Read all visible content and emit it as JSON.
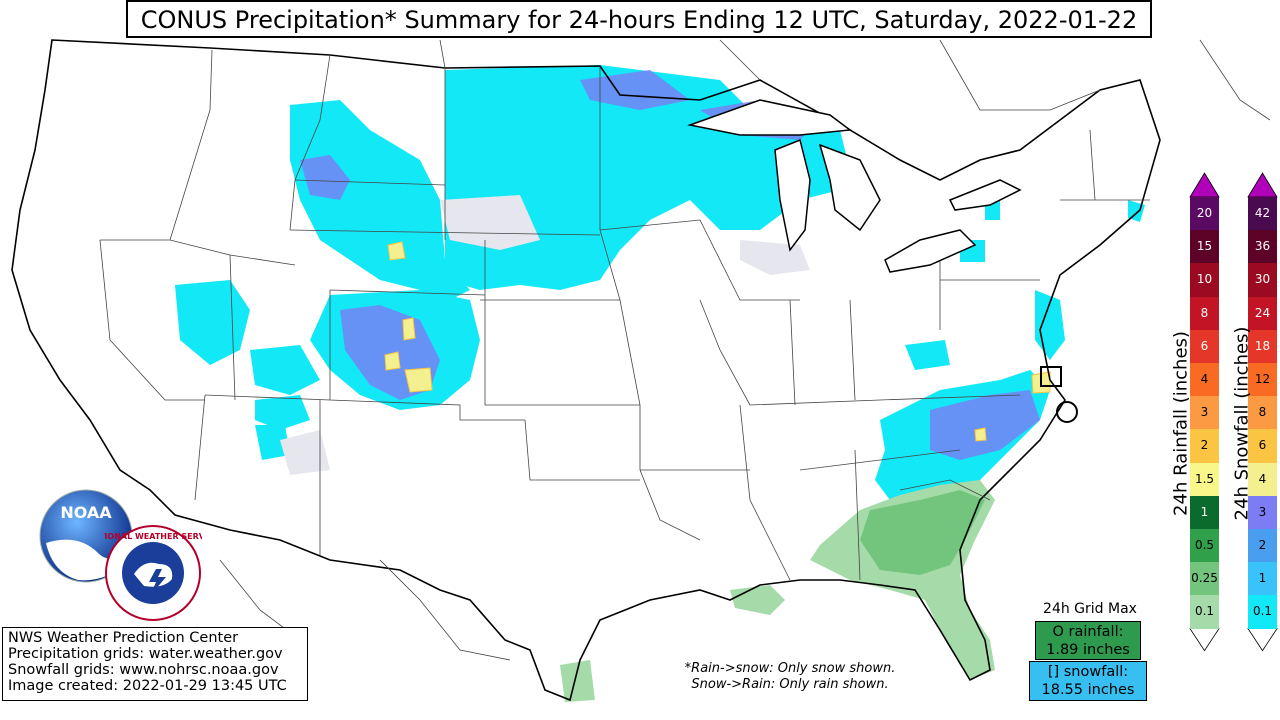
{
  "title": "CONUS Precipitation* Summary for 24-hours Ending 12 UTC, Saturday, 2022-01-22",
  "credits": [
    "NWS Weather Prediction Center",
    "Precipitation grids: water.weather.gov",
    "Snowfall grids: www.nohrsc.noaa.gov",
    "Image created: 2022-01-29 13:45 UTC"
  ],
  "footnote": [
    "*Rain->snow: Only snow shown.",
    "Snow->Rain: Only rain shown."
  ],
  "grid_max": {
    "title": "24h Grid Max",
    "rain_line1": "O rainfall:",
    "rain_line2": "1.89 inches",
    "snow_line1": "[] snowfall:",
    "snow_line2": "18.55 inches"
  },
  "logos": {
    "noaa": "NOAA",
    "nws": "NATIONAL WEATHER SERVICE"
  },
  "rain_scale": {
    "label": "24h Rainfall (inches)",
    "levels": [
      "0.1",
      "0.25",
      "0.5",
      "1",
      "1.5",
      "2",
      "3",
      "4",
      "6",
      "8",
      "10",
      "15",
      "20"
    ],
    "colors": [
      "#a5dba8",
      "#73c47c",
      "#30a04a",
      "#0a6b2c",
      "#f9f68a",
      "#fbc443",
      "#fc9a43",
      "#f96b22",
      "#e5362a",
      "#c21424",
      "#9b0a20",
      "#5c0327",
      "#5a0a63"
    ],
    "arrow_color": "#b000b8"
  },
  "snow_scale": {
    "label": "24h Snowfall (inches)",
    "levels": [
      "0.1",
      "1",
      "2",
      "3",
      "4",
      "6",
      "8",
      "12",
      "18",
      "24",
      "30",
      "36",
      "42"
    ],
    "colors": [
      "#13e8f7",
      "#3ac3fb",
      "#4a9ef0",
      "#7c7cf4",
      "#f5f08f",
      "#fbc443",
      "#fc9a43",
      "#f96b22",
      "#e5362a",
      "#c21424",
      "#9b0a20",
      "#5c0327",
      "#4a0a4f"
    ],
    "arrow_color": "#b000b8"
  }
}
